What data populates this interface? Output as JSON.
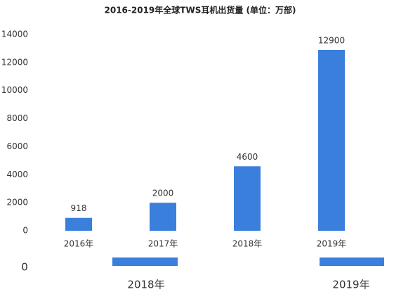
{
  "chart_data": {
    "type": "bar",
    "title": "2016-2019年全球TWS耳机出货量 (单位：万部)",
    "categories": [
      "2016年",
      "2017年",
      "2018年",
      "2019年"
    ],
    "values": [
      918,
      2000,
      4600,
      12900
    ],
    "color": "#3b7fdc",
    "ylim": [
      0,
      14000
    ],
    "yticks": [
      0,
      2000,
      4000,
      6000,
      8000,
      10000,
      12000,
      14000
    ],
    "grid": false
  },
  "lower_fragment": {
    "tick": "0",
    "labels": [
      "2018年",
      "2019年"
    ]
  }
}
